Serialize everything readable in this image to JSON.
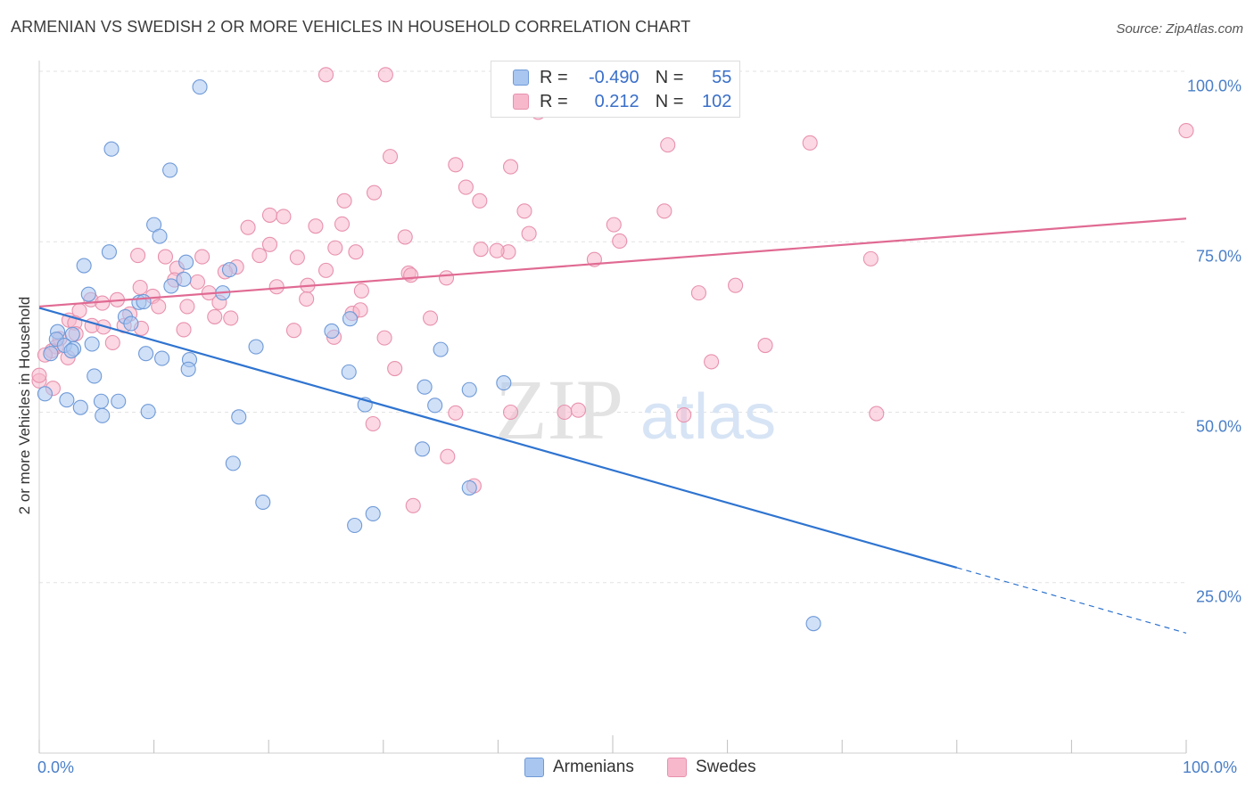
{
  "header": {
    "title": "ARMENIAN VS SWEDISH 2 OR MORE VEHICLES IN HOUSEHOLD CORRELATION CHART",
    "source": "Source: ZipAtlas.com"
  },
  "legend": {
    "rows": [
      {
        "r_label": "R =",
        "r_value": "-0.490",
        "n_label": "N =",
        "n_value": "55"
      },
      {
        "r_label": "R =",
        "r_value": "0.212",
        "n_label": "N =",
        "n_value": "102"
      }
    ]
  },
  "bottom_legend": {
    "armenians": "Armenians",
    "swedes": "Swedes"
  },
  "watermark": {
    "zip": "ZIP",
    "atlas": "atlas"
  },
  "colors": {
    "armenian_fill": "#a9c6f0",
    "armenian_stroke": "#6f9ad8",
    "armenian_line": "#2f74d0",
    "swede_fill": "#f7b8cc",
    "swede_stroke": "#e891ad",
    "swede_line": "#e06a93",
    "tick_text": "#4a7fc8",
    "grid": "#e2e2e2"
  },
  "chart_data": {
    "type": "scatter",
    "title": "ARMENIAN VS SWEDISH 2 OR MORE VEHICLES IN HOUSEHOLD CORRELATION CHART",
    "xlabel": "",
    "ylabel": "2 or more Vehicles in Household",
    "x_tick_labels": [
      "0.0%",
      "100.0%"
    ],
    "y_tick_labels": [
      "100.0%",
      "75.0%",
      "50.0%",
      "25.0%"
    ],
    "y_ticks": [
      100,
      75,
      50,
      25
    ],
    "xlim": [
      0,
      100
    ],
    "ylim": [
      0,
      100
    ],
    "grid": true,
    "series": [
      {
        "name": "Armenians",
        "r": -0.49,
        "n": 55,
        "trend": {
          "x0": 0,
          "y0": 65.3,
          "x1": 80,
          "y1": 27.2,
          "dash_to_x": 100,
          "dash_to_y": 17.6
        },
        "points": [
          [
            14,
            97.7
          ],
          [
            6.3,
            88.6
          ],
          [
            11.4,
            85.5
          ],
          [
            10,
            77.5
          ],
          [
            10.5,
            75.8
          ],
          [
            6.1,
            73.5
          ],
          [
            3.9,
            71.5
          ],
          [
            12.8,
            72
          ],
          [
            16.6,
            70.9
          ],
          [
            12.6,
            69.5
          ],
          [
            11.5,
            68.5
          ],
          [
            16,
            67.5
          ],
          [
            4.3,
            67.3
          ],
          [
            8.7,
            66.1
          ],
          [
            9.1,
            66.2
          ],
          [
            7.5,
            64
          ],
          [
            8,
            63
          ],
          [
            27.1,
            63.7
          ],
          [
            1.6,
            61.8
          ],
          [
            2.9,
            61.4
          ],
          [
            1.5,
            60.7
          ],
          [
            2.2,
            59.8
          ],
          [
            4.6,
            60
          ],
          [
            3,
            59.3
          ],
          [
            18.9,
            59.6
          ],
          [
            1,
            58.6
          ],
          [
            25.5,
            61.9
          ],
          [
            35,
            59.2
          ],
          [
            2.8,
            59
          ],
          [
            9.3,
            58.6
          ],
          [
            10.7,
            57.9
          ],
          [
            13.1,
            57.7
          ],
          [
            13,
            56.3
          ],
          [
            27,
            55.9
          ],
          [
            4.8,
            55.3
          ],
          [
            40.5,
            54.3
          ],
          [
            33.6,
            53.7
          ],
          [
            37.5,
            53.3
          ],
          [
            0.5,
            52.7
          ],
          [
            2.4,
            51.8
          ],
          [
            3.6,
            50.7
          ],
          [
            5.4,
            51.6
          ],
          [
            6.9,
            51.6
          ],
          [
            28.4,
            51.1
          ],
          [
            34.5,
            51
          ],
          [
            5.5,
            49.5
          ],
          [
            9.5,
            50.1
          ],
          [
            17.4,
            49.3
          ],
          [
            16.9,
            42.5
          ],
          [
            33.4,
            44.6
          ],
          [
            37.5,
            38.9
          ],
          [
            19.5,
            36.8
          ],
          [
            29.1,
            35.1
          ],
          [
            27.5,
            33.4
          ],
          [
            67.5,
            19
          ]
        ]
      },
      {
        "name": "Swedes",
        "r": 0.212,
        "n": 102,
        "trend": {
          "x0": 0,
          "y0": 65.5,
          "x1": 100,
          "y1": 78.4
        },
        "points": [
          [
            25,
            99.5
          ],
          [
            30.2,
            99.5
          ],
          [
            57,
            99.6
          ],
          [
            43.5,
            94
          ],
          [
            100,
            91.3
          ],
          [
            54.8,
            89.2
          ],
          [
            67.2,
            89.5
          ],
          [
            30.6,
            87.5
          ],
          [
            36.3,
            86.3
          ],
          [
            41.1,
            86
          ],
          [
            37.2,
            83
          ],
          [
            29.2,
            82.2
          ],
          [
            26.6,
            81
          ],
          [
            38.4,
            81
          ],
          [
            42.3,
            79.5
          ],
          [
            20.1,
            78.9
          ],
          [
            21.3,
            78.7
          ],
          [
            54.5,
            79.5
          ],
          [
            26.4,
            77.6
          ],
          [
            24.1,
            77.3
          ],
          [
            18.2,
            77.1
          ],
          [
            50.1,
            77.5
          ],
          [
            31.9,
            75.7
          ],
          [
            42.7,
            76.2
          ],
          [
            20.1,
            74.6
          ],
          [
            50.6,
            75.1
          ],
          [
            25.8,
            74.1
          ],
          [
            27.6,
            73.5
          ],
          [
            40.9,
            73.5
          ],
          [
            38.5,
            73.9
          ],
          [
            39.9,
            73.7
          ],
          [
            19.2,
            73
          ],
          [
            22.5,
            72.7
          ],
          [
            48.4,
            72.4
          ],
          [
            72.5,
            72.5
          ],
          [
            11,
            72.8
          ],
          [
            14.2,
            72.8
          ],
          [
            8.6,
            73
          ],
          [
            12,
            71.1
          ],
          [
            17.2,
            71.3
          ],
          [
            25,
            70.8
          ],
          [
            16.2,
            70.6
          ],
          [
            32.2,
            70.4
          ],
          [
            32.4,
            70.1
          ],
          [
            35.5,
            69.7
          ],
          [
            11.8,
            69.4
          ],
          [
            8.8,
            68.3
          ],
          [
            13.8,
            69.1
          ],
          [
            14.8,
            67.5
          ],
          [
            20.7,
            68.4
          ],
          [
            23.4,
            68.6
          ],
          [
            28.1,
            67.8
          ],
          [
            57.5,
            67.5
          ],
          [
            60.7,
            68.6
          ],
          [
            9.9,
            67
          ],
          [
            15.7,
            66.1
          ],
          [
            23.3,
            66.6
          ],
          [
            4.5,
            66.5
          ],
          [
            6.8,
            66.5
          ],
          [
            5.5,
            66
          ],
          [
            3.5,
            64.9
          ],
          [
            10.4,
            65.5
          ],
          [
            12.9,
            65.5
          ],
          [
            27.3,
            64.5
          ],
          [
            28,
            65
          ],
          [
            7.9,
            64.4
          ],
          [
            15.3,
            64
          ],
          [
            16.7,
            63.8
          ],
          [
            34.1,
            63.8
          ],
          [
            2.6,
            63.5
          ],
          [
            4.6,
            62.7
          ],
          [
            3.1,
            63.1
          ],
          [
            5.6,
            62.5
          ],
          [
            7.4,
            62.7
          ],
          [
            12.6,
            62.1
          ],
          [
            22.2,
            62
          ],
          [
            8.9,
            62.3
          ],
          [
            3.2,
            61.5
          ],
          [
            1.8,
            60.8
          ],
          [
            25.7,
            61
          ],
          [
            30.1,
            60.9
          ],
          [
            6.4,
            60.2
          ],
          [
            1.5,
            59.6
          ],
          [
            63.3,
            59.8
          ],
          [
            1.1,
            59
          ],
          [
            0.5,
            58.4
          ],
          [
            58.6,
            57.4
          ],
          [
            31,
            56.4
          ],
          [
            0,
            54.6
          ],
          [
            41.1,
            50
          ],
          [
            45.8,
            50
          ],
          [
            47,
            50.3
          ],
          [
            56.2,
            49.6
          ],
          [
            73,
            49.8
          ],
          [
            36.3,
            49.9
          ],
          [
            29.1,
            48.3
          ],
          [
            35.6,
            43.5
          ],
          [
            37.9,
            39.2
          ],
          [
            32.6,
            36.3
          ],
          [
            0,
            55.4
          ],
          [
            1.2,
            53.5
          ],
          [
            2.5,
            58
          ]
        ]
      }
    ]
  }
}
